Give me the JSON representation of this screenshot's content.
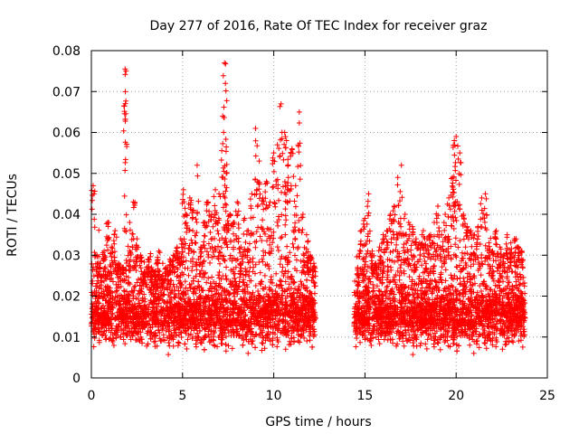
{
  "chart_data": {
    "type": "scatter",
    "title": "Day 277 of 2016, Rate Of TEC Index for receiver graz",
    "xlabel": "GPS time / hours",
    "ylabel": "ROTI / TECUs",
    "xlim": [
      0,
      25
    ],
    "ylim": [
      0,
      0.08
    ],
    "xticks": [
      0,
      5,
      10,
      15,
      20,
      25
    ],
    "xtick_labels": [
      "0",
      "5",
      "10",
      "15",
      "20",
      "25"
    ],
    "yticks": [
      0,
      0.01,
      0.02,
      0.03,
      0.04,
      0.05,
      0.06,
      0.07,
      0.08
    ],
    "ytick_labels": [
      "0",
      "0.01",
      "0.02",
      "0.03",
      "0.04",
      "0.05",
      "0.06",
      "0.07",
      "0.08"
    ],
    "grid": true,
    "marker": "+",
    "marker_color": "#ff0000",
    "series": [
      {
        "name": "ROTI",
        "x": [
          0.1,
          0.3,
          0.5,
          0.7,
          0.9,
          1.1,
          1.3,
          1.5,
          1.7,
          1.85,
          1.9,
          2.1,
          2.3,
          2.5,
          2.7,
          2.9,
          3.1,
          3.3,
          3.5,
          3.7,
          3.9,
          4.1,
          4.3,
          4.5,
          4.7,
          4.9,
          5.05,
          5.2,
          5.4,
          5.6,
          5.8,
          6.0,
          6.2,
          6.4,
          6.6,
          6.8,
          7.0,
          7.2,
          7.3,
          7.35,
          7.4,
          7.6,
          7.8,
          8.0,
          8.2,
          8.4,
          8.6,
          8.8,
          9.0,
          9.2,
          9.4,
          9.6,
          9.8,
          10.0,
          10.2,
          10.4,
          10.6,
          10.7,
          10.8,
          11.0,
          11.2,
          11.4,
          11.6,
          11.8,
          12.0,
          12.2,
          14.6,
          14.8,
          15.0,
          15.2,
          15.4,
          15.6,
          15.8,
          16.0,
          16.2,
          16.4,
          16.6,
          16.8,
          17.0,
          17.2,
          17.4,
          17.6,
          17.8,
          18.0,
          18.2,
          18.4,
          18.6,
          18.8,
          19.0,
          19.2,
          19.4,
          19.6,
          19.8,
          19.9,
          20.0,
          20.2,
          20.4,
          20.6,
          20.8,
          21.0,
          21.2,
          21.4,
          21.6,
          21.8,
          22.0,
          22.2,
          22.4,
          22.6,
          22.8,
          23.0,
          23.2,
          23.4,
          23.6
        ],
        "values": [
          0.047,
          0.03,
          0.028,
          0.031,
          0.038,
          0.032,
          0.036,
          0.028,
          0.027,
          0.0755,
          0.075,
          0.038,
          0.043,
          0.034,
          0.03,
          0.026,
          0.029,
          0.027,
          0.026,
          0.031,
          0.025,
          0.027,
          0.029,
          0.03,
          0.032,
          0.034,
          0.046,
          0.04,
          0.044,
          0.041,
          0.052,
          0.032,
          0.038,
          0.043,
          0.04,
          0.046,
          0.045,
          0.064,
          0.077,
          0.072,
          0.05,
          0.04,
          0.038,
          0.043,
          0.032,
          0.039,
          0.036,
          0.045,
          0.061,
          0.053,
          0.044,
          0.048,
          0.043,
          0.055,
          0.057,
          0.067,
          0.06,
          0.058,
          0.049,
          0.056,
          0.047,
          0.065,
          0.04,
          0.035,
          0.03,
          0.028,
          0.027,
          0.036,
          0.039,
          0.045,
          0.031,
          0.028,
          0.032,
          0.035,
          0.036,
          0.04,
          0.042,
          0.049,
          0.052,
          0.04,
          0.038,
          0.037,
          0.034,
          0.033,
          0.036,
          0.034,
          0.035,
          0.038,
          0.042,
          0.035,
          0.04,
          0.044,
          0.049,
          0.058,
          0.059,
          0.055,
          0.04,
          0.037,
          0.036,
          0.035,
          0.037,
          0.044,
          0.045,
          0.033,
          0.031,
          0.036,
          0.032,
          0.03,
          0.035,
          0.033,
          0.034,
          0.032,
          0.031
        ]
      }
    ],
    "segments": [
      {
        "x_start": 0.0,
        "x_end": 12.3,
        "y_band": [
          0.009,
          0.022
        ]
      },
      {
        "x_start": 14.4,
        "x_end": 23.8,
        "y_band": [
          0.009,
          0.022
        ]
      }
    ]
  }
}
